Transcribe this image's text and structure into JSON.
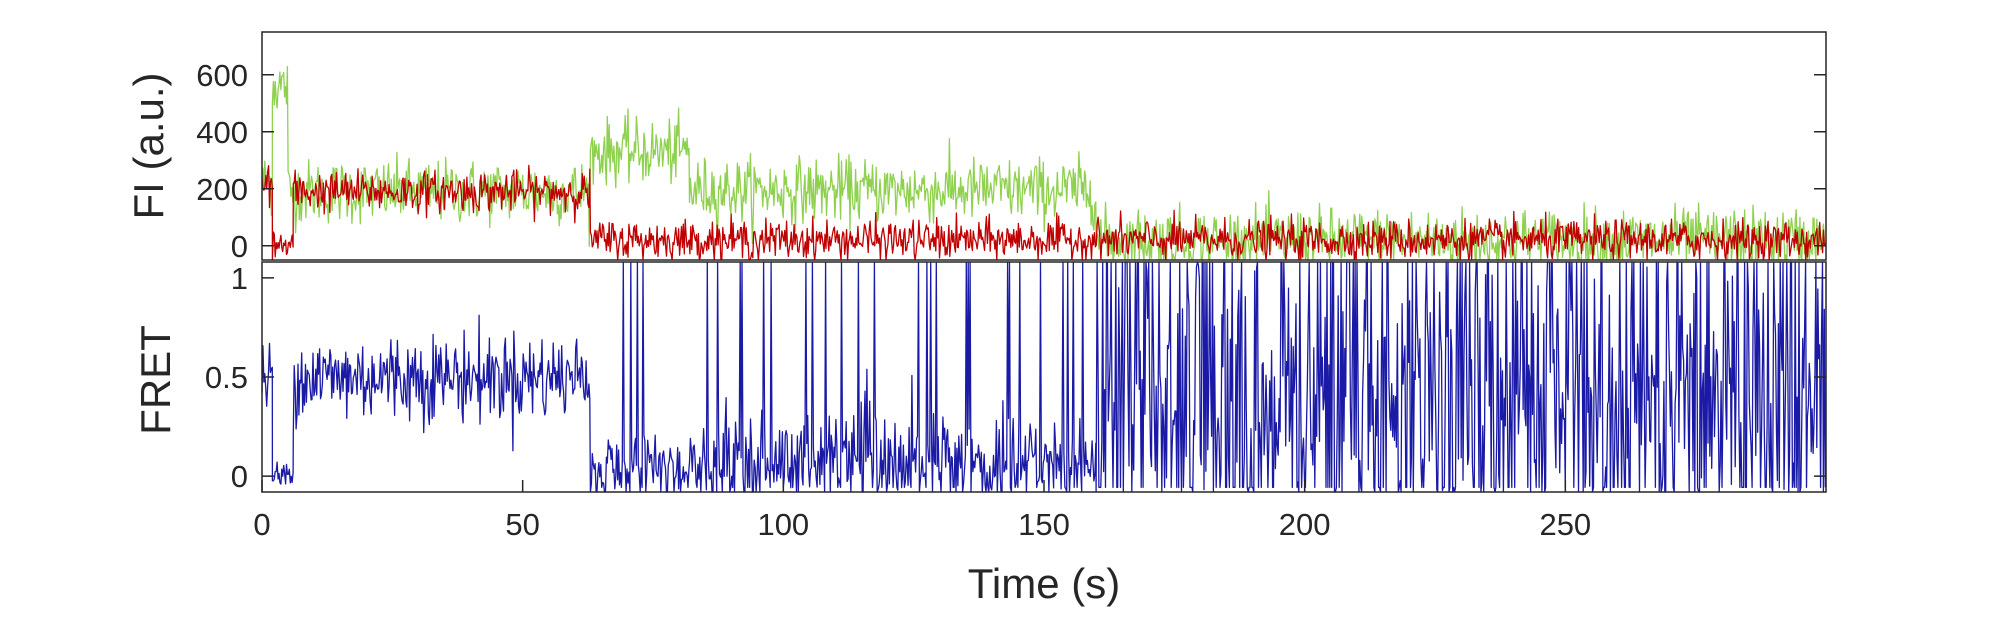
{
  "chart_data": [
    {
      "panel": "top",
      "type": "line",
      "ylabel": "FI (a.u.)",
      "xlim": [
        0,
        300
      ],
      "ylim": [
        -50,
        750
      ],
      "yticks": [
        0,
        200,
        400,
        600
      ],
      "ytick_labels": [
        "0",
        "200",
        "400",
        "600"
      ],
      "grid": false,
      "series": [
        {
          "color": "#8fd14f",
          "noise": 55,
          "segments": [
            {
              "x": [
                0,
                2
              ],
              "level": 220
            },
            {
              "x": [
                2,
                5
              ],
              "level": 560
            },
            {
              "x": [
                5,
                63
              ],
              "level": 190
            },
            {
              "x": [
                63,
                82
              ],
              "level": 330
            },
            {
              "x": [
                82,
                160
              ],
              "level": 195
            },
            {
              "x": [
                160,
                300
              ],
              "level": 20
            }
          ]
        },
        {
          "color": "#c00000",
          "noise": 35,
          "segments": [
            {
              "x": [
                0,
                2
              ],
              "level": 210
            },
            {
              "x": [
                2,
                6
              ],
              "level": 0
            },
            {
              "x": [
                6,
                63
              ],
              "level": 190
            },
            {
              "x": [
                63,
                300
              ],
              "level": 20
            }
          ]
        }
      ]
    },
    {
      "panel": "bottom",
      "type": "line",
      "xlabel": "Time (s)",
      "ylabel": "FRET",
      "xlim": [
        0,
        300
      ],
      "ylim": [
        -0.08,
        1.08
      ],
      "xticks": [
        0,
        50,
        100,
        150,
        200,
        250
      ],
      "xtick_labels": [
        "0",
        "50",
        "100",
        "150",
        "200",
        "250"
      ],
      "yticks": [
        0,
        0.5,
        1
      ],
      "ytick_labels": [
        "0",
        "0.5",
        "1"
      ],
      "grid": false,
      "series": [
        {
          "color": "#1a1aa6",
          "segments": [
            {
              "x": [
                0,
                2
              ],
              "level": 0.5,
              "noise": 0.08
            },
            {
              "x": [
                2,
                6
              ],
              "level": 0.0,
              "noise": 0.04
            },
            {
              "x": [
                6,
                63
              ],
              "level": 0.5,
              "noise": 0.11
            },
            {
              "x": [
                63,
                82
              ],
              "level": 0.05,
              "noise": 0.1,
              "spikes": 0.05
            },
            {
              "x": [
                82,
                160
              ],
              "level": 0.08,
              "noise": 0.12,
              "spikes": 0.12
            },
            {
              "x": [
                160,
                300
              ],
              "level": 0.4,
              "noise": 0.35,
              "spikes": 0.3
            }
          ]
        }
      ]
    }
  ]
}
